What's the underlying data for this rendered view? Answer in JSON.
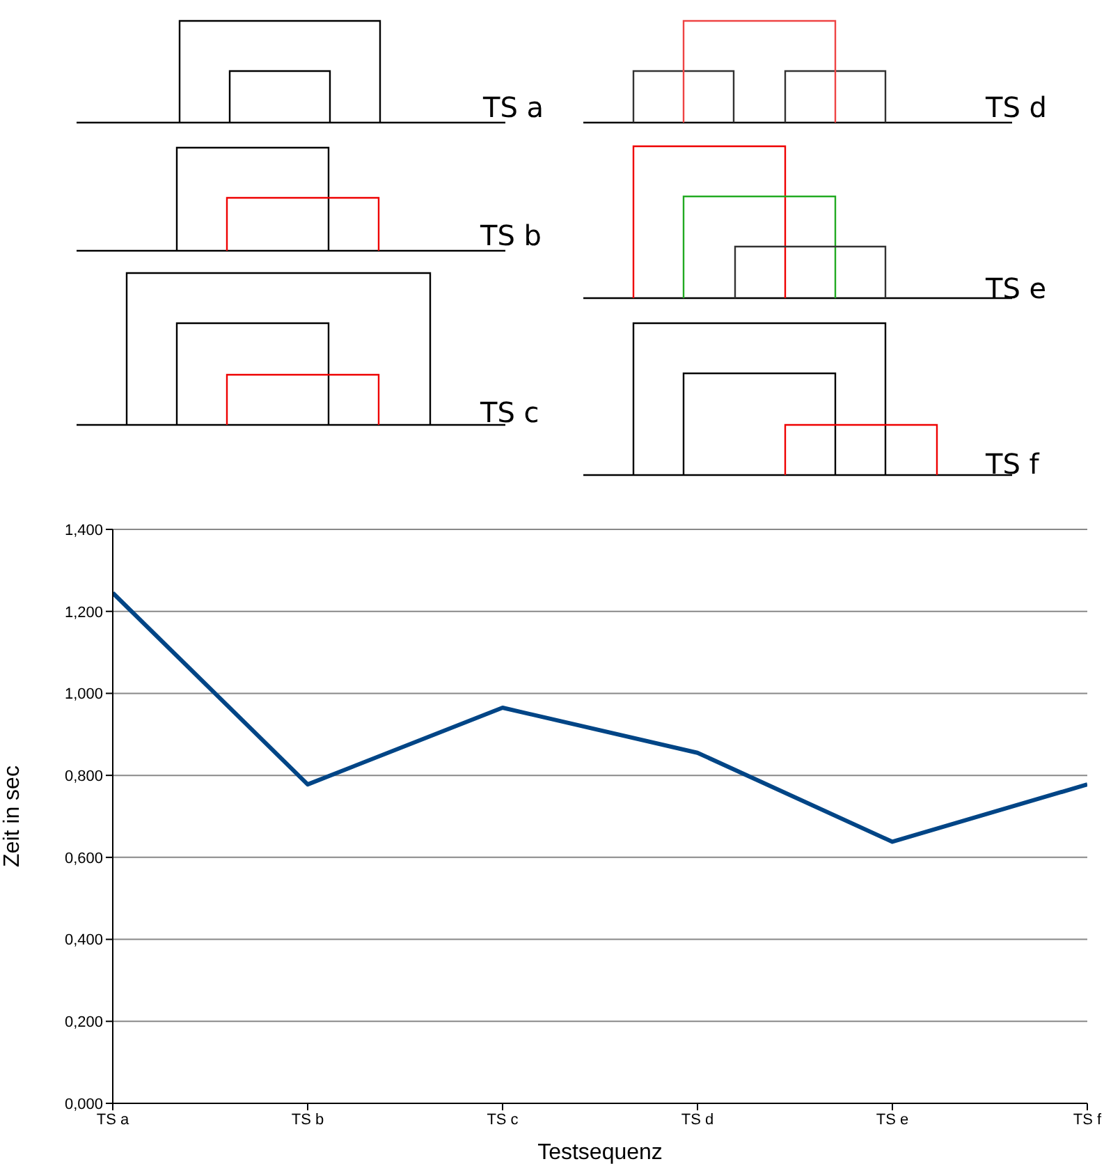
{
  "chart_data": {
    "type": "line",
    "xlabel": "Testsequenz",
    "ylabel": "Zeit in sec",
    "categories": [
      "TS a",
      "TS b",
      "TS c",
      "TS d",
      "TS e",
      "TS f"
    ],
    "series": [
      {
        "color": "#004586",
        "values": [
          1.245,
          0.778,
          0.965,
          0.855,
          0.638,
          0.778
        ]
      }
    ],
    "ylim": [
      0,
      1.4
    ],
    "yticks": [
      {
        "value": 0,
        "label": "0,000"
      },
      {
        "value": 0.2,
        "label": "0,200"
      },
      {
        "value": 0.4,
        "label": "0,400"
      },
      {
        "value": 0.6,
        "label": "0,600"
      },
      {
        "value": 0.8,
        "label": "0,800"
      },
      {
        "value": 1.0,
        "label": "1,000"
      },
      {
        "value": 1.2,
        "label": "1,200"
      },
      {
        "value": 1.4,
        "label": "1,400"
      }
    ],
    "grid": "y",
    "legend": false,
    "marker": "none",
    "line_style": "solid",
    "annotations": [
      "TS a",
      "TS b",
      "TS c",
      "TS d",
      "TS e",
      "TS f"
    ]
  }
}
